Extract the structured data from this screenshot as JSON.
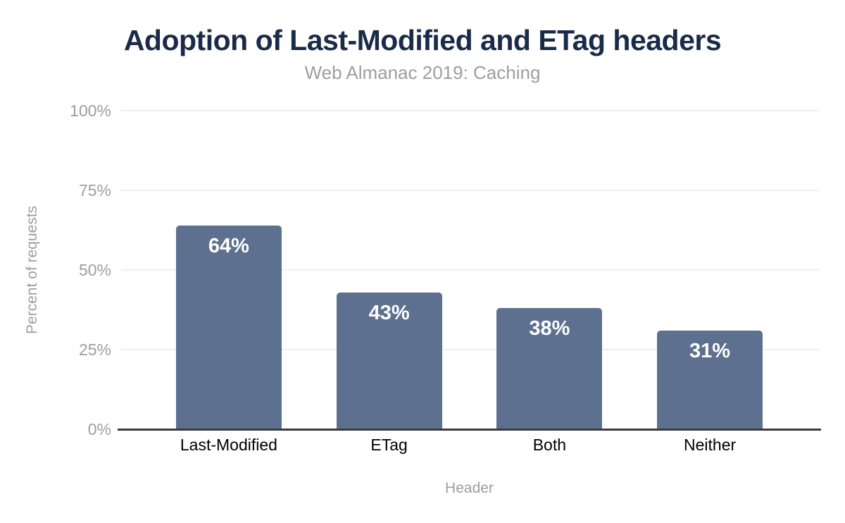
{
  "chart_data": {
    "type": "bar",
    "title": "Adoption of Last-Modified and ETag headers",
    "subtitle": "Web Almanac 2019: Caching",
    "xlabel": "Header",
    "ylabel": "Percent of requests",
    "categories": [
      "Last-Modified",
      "ETag",
      "Both",
      "Neither"
    ],
    "values": [
      64,
      43,
      38,
      31
    ],
    "value_labels": [
      "64%",
      "43%",
      "38%",
      "31%"
    ],
    "ylim": [
      0,
      100
    ],
    "yticks": [
      0,
      25,
      50,
      75,
      100
    ],
    "ytick_labels": [
      "0%",
      "25%",
      "50%",
      "75%",
      "100%"
    ],
    "grid": true,
    "legend_position": "none",
    "colors": {
      "bar": "#5e7090",
      "bar_label": "#ffffff",
      "title": "#1a2b49",
      "subtitle": "#9e9e9e",
      "tick_label": "#9e9e9e",
      "axis_title": "#9e9e9e",
      "category_label": "#000000",
      "axis_line": "#3c3c3c",
      "gridline": "#efefef",
      "background": "#ffffff"
    }
  }
}
